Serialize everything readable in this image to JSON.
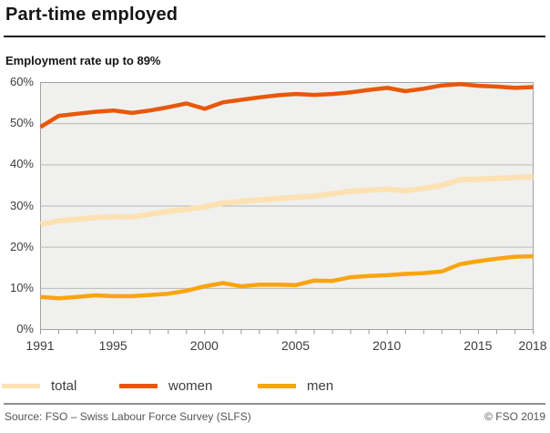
{
  "header": {
    "title": "Part-time employed",
    "subtitle": "Employment rate up to 89%"
  },
  "chart_data": {
    "type": "line",
    "title": "Part-time employed",
    "subtitle": "Employment rate up to 89%",
    "xlabel": "",
    "ylabel": "",
    "x": [
      1991,
      1992,
      1993,
      1994,
      1995,
      1996,
      1997,
      1998,
      1999,
      2000,
      2001,
      2002,
      2003,
      2004,
      2005,
      2006,
      2007,
      2008,
      2009,
      2010,
      2011,
      2012,
      2013,
      2014,
      2015,
      2016,
      2017,
      2018
    ],
    "series": [
      {
        "name": "total",
        "color": "#fce2b3",
        "stroke_width": 6,
        "values": [
          25.6,
          26.4,
          26.8,
          27.2,
          27.4,
          27.3,
          28.0,
          28.7,
          29.2,
          29.8,
          30.7,
          31.1,
          31.5,
          31.8,
          32.1,
          32.4,
          33.0,
          33.6,
          33.8,
          34.1,
          33.7,
          34.3,
          35.0,
          36.4,
          36.5,
          36.7,
          36.9,
          37.1
        ]
      },
      {
        "name": "women",
        "color": "#e8580a",
        "stroke_width": 4.5,
        "values": [
          49.2,
          51.9,
          52.4,
          52.9,
          53.2,
          52.6,
          53.2,
          54.0,
          54.9,
          53.6,
          55.2,
          55.8,
          56.4,
          56.9,
          57.2,
          57.0,
          57.2,
          57.6,
          58.2,
          58.7,
          57.9,
          58.5,
          59.3,
          59.6,
          59.2,
          59.0,
          58.7,
          58.9
        ]
      },
      {
        "name": "men",
        "color": "#faa410",
        "stroke_width": 4.5,
        "values": [
          7.9,
          7.6,
          7.9,
          8.3,
          8.1,
          8.1,
          8.4,
          8.7,
          9.4,
          10.5,
          11.3,
          10.5,
          10.9,
          10.9,
          10.8,
          11.9,
          11.8,
          12.7,
          13.0,
          13.2,
          13.5,
          13.7,
          14.1,
          15.9,
          16.6,
          17.2,
          17.7,
          17.8
        ]
      }
    ],
    "ylim": [
      0,
      60
    ],
    "yticks": [
      0,
      10,
      20,
      30,
      40,
      50,
      60
    ],
    "ytick_labels": [
      "0%",
      "10%",
      "20%",
      "30%",
      "40%",
      "50%",
      "60%"
    ],
    "xticks": [
      1991,
      1995,
      2000,
      2005,
      2010,
      2015,
      2018
    ],
    "xtick_labels": [
      "1991",
      "1995",
      "2000",
      "2005",
      "2010",
      "2015",
      "2018"
    ],
    "grid": true,
    "plot_background": "#f0f0ee",
    "grid_color": "#b9b9b9",
    "border_color": "#a3a3a3",
    "tick_color": "#999999",
    "legend_position": "bottom"
  },
  "legend": {
    "items": [
      {
        "label": "total",
        "color": "#fce2b3"
      },
      {
        "label": "women",
        "color": "#e8580a"
      },
      {
        "label": "men",
        "color": "#faa410"
      }
    ]
  },
  "footer": {
    "source": "Source: FSO – Swiss Labour Force Survey (SLFS)",
    "copyright": "© FSO 2019"
  }
}
